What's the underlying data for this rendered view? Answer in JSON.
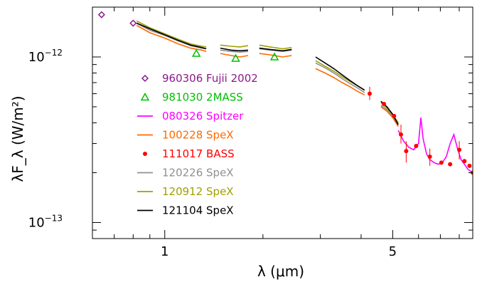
{
  "chart_data": {
    "type": "line",
    "xlabel": "λ (μm)",
    "ylabel": "λF_λ (W/m²)",
    "xscale": "log",
    "yscale": "log",
    "xlim": [
      0.6,
      8.8
    ],
    "ylim": [
      8e-14,
      2e-12
    ],
    "x_ticks": [
      {
        "value": 1,
        "label": "1"
      },
      {
        "value": 5,
        "label": "5"
      }
    ],
    "y_ticks": [
      {
        "value": 1e-12,
        "base": "10",
        "exp": "−12"
      },
      {
        "value": 1e-13,
        "base": "10",
        "exp": "−13"
      }
    ],
    "series": [
      {
        "name": "960306 Fujii 2002",
        "color": "#8b1a8b",
        "marker": "diamond",
        "line": false,
        "x": [
          0.64,
          0.8
        ],
        "y": [
          1.8e-12,
          1.6e-12
        ]
      },
      {
        "name": "981030 2MASS",
        "color": "#00c000",
        "marker": "triangle",
        "line": false,
        "x": [
          1.25,
          1.65,
          2.17
        ],
        "y": [
          1.05e-12,
          9.8e-13,
          1e-12
        ]
      },
      {
        "name": "080326 Spitzer",
        "color": "#ff00ff",
        "marker": "none",
        "line": true,
        "x": [
          5.2,
          5.4,
          5.6,
          5.8,
          6.0,
          6.1,
          6.2,
          6.35,
          6.5,
          6.7,
          6.9,
          7.1,
          7.3,
          7.5,
          7.7,
          7.9,
          8.1,
          8.3,
          8.5,
          8.8
        ],
        "y": [
          3.6e-13,
          3.1e-13,
          2.85e-13,
          2.75e-13,
          3e-13,
          4.3e-13,
          3.2e-13,
          2.6e-13,
          2.4e-13,
          2.3e-13,
          2.25e-13,
          2.3e-13,
          2.5e-13,
          3e-13,
          3.4e-13,
          2.8e-13,
          2.4e-13,
          2.25e-13,
          2.1e-13,
          2e-13
        ]
      },
      {
        "name": "100228 SpeX",
        "color": "#ff6a00",
        "marker": "none",
        "line": true,
        "segments": [
          {
            "x": [
              0.82,
              0.9,
              1.0,
              1.1,
              1.2,
              1.3,
              1.34
            ],
            "y": [
              1.55e-12,
              1.4e-12,
              1.3e-12,
              1.2e-12,
              1.13e-12,
              1.1e-12,
              1.08e-12
            ]
          },
          {
            "x": [
              1.48,
              1.6,
              1.7,
              1.8
            ],
            "y": [
              1.05e-12,
              1.02e-12,
              1e-12,
              1.02e-12
            ]
          },
          {
            "x": [
              1.95,
              2.1,
              2.3,
              2.45
            ],
            "y": [
              1.05e-12,
              1.03e-12,
              1e-12,
              1.02e-12
            ]
          },
          {
            "x": [
              2.9,
              3.1,
              3.3,
              3.5,
              3.7,
              3.9,
              4.1
            ],
            "y": [
              8.5e-13,
              8e-13,
              7.5e-13,
              7e-13,
              6.6e-13,
              6.2e-13,
              5.9e-13
            ]
          },
          {
            "x": [
              4.6,
              4.8,
              5.0,
              5.2
            ],
            "y": [
              5e-13,
              4.7e-13,
              4.3e-13,
              3.8e-13
            ]
          }
        ]
      },
      {
        "name": "111017 BASS",
        "color": "#ff0000",
        "marker": "circle",
        "line": false,
        "x": [
          4.25,
          4.7,
          5.05,
          5.3,
          5.5,
          5.9,
          6.5,
          7.05,
          7.5,
          8.0,
          8.3,
          8.6,
          8.8
        ],
        "y": [
          6e-13,
          5.2e-13,
          4.4e-13,
          3.4e-13,
          2.7e-13,
          2.9e-13,
          2.5e-13,
          2.3e-13,
          2.25e-13,
          2.75e-13,
          2.35e-13,
          2.2e-13,
          2e-13
        ]
      },
      {
        "name": "120226 SpeX",
        "color": "#909090",
        "marker": "none",
        "line": true,
        "segments": [
          {
            "x": [
              0.82,
              0.9,
              1.0,
              1.1,
              1.2,
              1.3,
              1.34
            ],
            "y": [
              1.6e-12,
              1.45e-12,
              1.35e-12,
              1.25e-12,
              1.17e-12,
              1.13e-12,
              1.12e-12
            ]
          },
          {
            "x": [
              1.48,
              1.6,
              1.7,
              1.8
            ],
            "y": [
              1.1e-12,
              1.08e-12,
              1.07e-12,
              1.08e-12
            ]
          },
          {
            "x": [
              1.95,
              2.1,
              2.3,
              2.45
            ],
            "y": [
              1.12e-12,
              1.1e-12,
              1.08e-12,
              1.1e-12
            ]
          },
          {
            "x": [
              2.9,
              3.1,
              3.3,
              3.5,
              3.7,
              3.9,
              4.1
            ],
            "y": [
              9.2e-13,
              8.6e-13,
              8e-13,
              7.4e-13,
              6.9e-13,
              6.5e-13,
              6.1e-13
            ]
          },
          {
            "x": [
              4.6,
              4.8,
              5.0,
              5.2
            ],
            "y": [
              5.1e-13,
              4.8e-13,
              4.4e-13,
              3.9e-13
            ]
          }
        ]
      },
      {
        "name": "120912 SpeX",
        "color": "#a0a000",
        "marker": "none",
        "line": true,
        "segments": [
          {
            "x": [
              0.82,
              0.9,
              1.0,
              1.1,
              1.2,
              1.3,
              1.34
            ],
            "y": [
              1.65e-12,
              1.5e-12,
              1.38e-12,
              1.28e-12,
              1.2e-12,
              1.16e-12,
              1.15e-12
            ]
          },
          {
            "x": [
              1.48,
              1.6,
              1.7,
              1.8
            ],
            "y": [
              1.18e-12,
              1.16e-12,
              1.15e-12,
              1.17e-12
            ]
          },
          {
            "x": [
              1.95,
              2.1,
              2.3,
              2.45
            ],
            "y": [
              1.18e-12,
              1.15e-12,
              1.12e-12,
              1.14e-12
            ]
          },
          {
            "x": [
              2.9,
              3.1,
              3.3,
              3.5,
              3.7,
              3.9,
              4.1
            ],
            "y": [
              9.5e-13,
              8.8e-13,
              8.2e-13,
              7.6e-13,
              7.1e-13,
              6.7e-13,
              6.3e-13
            ]
          },
          {
            "x": [
              4.6,
              4.8,
              5.0,
              5.2
            ],
            "y": [
              5.3e-13,
              4.9e-13,
              4.5e-13,
              4e-13
            ]
          }
        ]
      },
      {
        "name": "121104 SpeX",
        "color": "#000000",
        "marker": "none",
        "line": true,
        "segments": [
          {
            "x": [
              0.82,
              0.9,
              1.0,
              1.1,
              1.2,
              1.3,
              1.34
            ],
            "y": [
              1.6e-12,
              1.48e-12,
              1.36e-12,
              1.26e-12,
              1.18e-12,
              1.14e-12,
              1.12e-12
            ]
          },
          {
            "x": [
              1.48,
              1.6,
              1.7,
              1.8
            ],
            "y": [
              1.13e-12,
              1.1e-12,
              1.09e-12,
              1.1e-12
            ]
          },
          {
            "x": [
              1.95,
              2.1,
              2.3,
              2.45
            ],
            "y": [
              1.13e-12,
              1.11e-12,
              1.09e-12,
              1.11e-12
            ]
          },
          {
            "x": [
              2.9,
              3.1,
              3.3,
              3.5,
              3.7,
              3.9,
              4.1
            ],
            "y": [
              1e-12,
              9.2e-13,
              8.5e-13,
              7.8e-13,
              7.2e-13,
              6.7e-13,
              6.3e-13
            ]
          },
          {
            "x": [
              4.6,
              4.8,
              5.0,
              5.2
            ],
            "y": [
              5.4e-13,
              5e-13,
              4.5e-13,
              3.9e-13
            ]
          }
        ]
      }
    ],
    "error_bars": [
      {
        "x": 4.25,
        "ylo": 5.5e-13,
        "yhi": 6.6e-13
      },
      {
        "x": 5.3,
        "ylo": 3e-13,
        "yhi": 3.9e-13
      },
      {
        "x": 5.5,
        "ylo": 2.3e-13,
        "yhi": 3.1e-13
      },
      {
        "x": 6.5,
        "ylo": 2.2e-13,
        "yhi": 2.8e-13
      },
      {
        "x": 8.0,
        "ylo": 2.4e-13,
        "yhi": 3.1e-13
      }
    ],
    "legend": "center-left"
  }
}
